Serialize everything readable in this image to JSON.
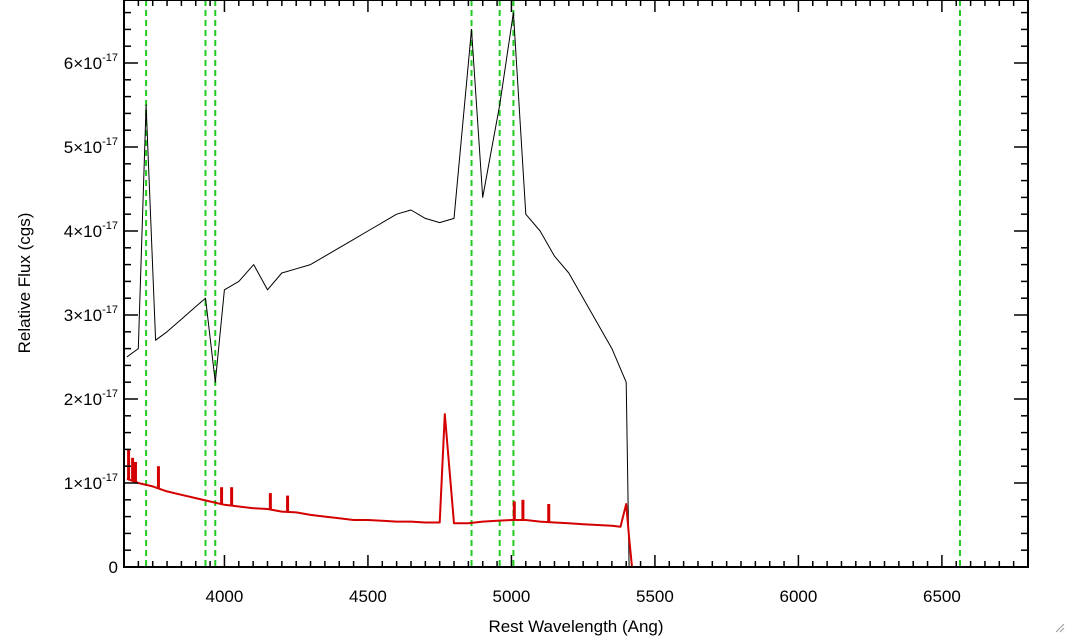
{
  "chart_data": {
    "type": "line",
    "title": "",
    "xlabel": "Rest Wavelength (Ang)",
    "ylabel": "Relative Flux (cgs)",
    "xlim": [
      3650,
      6800
    ],
    "ylim": [
      0,
      6.75e-17
    ],
    "x_ticks": [
      4000,
      4500,
      5000,
      5500,
      6000,
      6500
    ],
    "x_tick_labels": [
      "4000",
      "4500",
      "5000",
      "5500",
      "6000",
      "6500"
    ],
    "y_ticks": [
      0,
      1e-17,
      2e-17,
      3e-17,
      4e-17,
      5e-17,
      6e-17
    ],
    "y_tick_labels": [
      {
        "mantissa": "0",
        "exponent": ""
      },
      {
        "mantissa": "1×10",
        "exponent": "-17"
      },
      {
        "mantissa": "2×10",
        "exponent": "-17"
      },
      {
        "mantissa": "3×10",
        "exponent": "-17"
      },
      {
        "mantissa": "4×10",
        "exponent": "-17"
      },
      {
        "mantissa": "5×10",
        "exponent": "-17"
      },
      {
        "mantissa": "6×10",
        "exponent": "-17"
      }
    ],
    "grid": false,
    "series": [
      {
        "role": "spectrum",
        "color": "#000000",
        "x": [
          3660,
          3700,
          3727,
          3760,
          3800,
          3850,
          3900,
          3934,
          3968,
          4000,
          4050,
          4102,
          4150,
          4200,
          4250,
          4300,
          4350,
          4400,
          4450,
          4500,
          4550,
          4600,
          4650,
          4700,
          4750,
          4800,
          4861,
          4900,
          4959,
          5007,
          5050,
          5100,
          5150,
          5200,
          5250,
          5300,
          5350,
          5400,
          5410
        ],
        "y": [
          2.5e-17,
          2.6e-17,
          5.5e-17,
          2.7e-17,
          2.8e-17,
          2.95e-17,
          3.1e-17,
          3.2e-17,
          2.2e-17,
          3.3e-17,
          3.4e-17,
          3.6e-17,
          3.3e-17,
          3.5e-17,
          3.55e-17,
          3.6e-17,
          3.7e-17,
          3.8e-17,
          3.9e-17,
          4e-17,
          4.1e-17,
          4.2e-17,
          4.25e-17,
          4.15e-17,
          4.1e-17,
          4.15e-17,
          6.4e-17,
          4.4e-17,
          5.5e-17,
          6.6e-17,
          4.2e-17,
          4e-17,
          3.7e-17,
          3.5e-17,
          3.2e-17,
          2.9e-17,
          2.6e-17,
          2.2e-17,
          0
        ]
      },
      {
        "role": "model",
        "color": "#d40000",
        "x": [
          3660,
          3700,
          3750,
          3800,
          3850,
          3900,
          3950,
          4000,
          4050,
          4100,
          4150,
          4200,
          4250,
          4300,
          4350,
          4400,
          4450,
          4500,
          4550,
          4600,
          4650,
          4700,
          4750,
          4768,
          4800,
          4850,
          4900,
          4950,
          5000,
          5050,
          5100,
          5150,
          5200,
          5250,
          5300,
          5350,
          5380,
          5400,
          5410,
          5420,
          6800
        ],
        "y": [
          1.05e-17,
          1e-17,
          9.6e-18,
          9e-18,
          8.6e-18,
          8.2e-18,
          7.8e-18,
          7.4e-18,
          7.2e-18,
          7e-18,
          6.9e-18,
          6.6e-18,
          6.5e-18,
          6.2e-18,
          6e-18,
          5.8e-18,
          5.6e-18,
          5.6e-18,
          5.5e-18,
          5.4e-18,
          5.4e-18,
          5.3e-18,
          5.3e-18,
          1.82e-17,
          5.2e-18,
          5.2e-18,
          5.4e-18,
          5.5e-18,
          5.6e-18,
          5.6e-18,
          5.4e-18,
          5.3e-18,
          5.2e-18,
          5.1e-18,
          5e-18,
          4.9e-18,
          4.8e-18,
          7.5e-18,
          3.5e-18,
          0,
          0
        ]
      }
    ],
    "emission_lines": [
      {
        "x": 3666,
        "y": 1.4e-17
      },
      {
        "x": 3680,
        "y": 1.3e-17
      },
      {
        "x": 3690,
        "y": 1.25e-17
      },
      {
        "x": 3770,
        "y": 1.2e-17
      },
      {
        "x": 3990,
        "y": 9.5e-18
      },
      {
        "x": 4025,
        "y": 9.5e-18
      },
      {
        "x": 4160,
        "y": 8.8e-18
      },
      {
        "x": 4220,
        "y": 8.5e-18
      },
      {
        "x": 5010,
        "y": 7.8e-18
      },
      {
        "x": 5040,
        "y": 8e-18
      },
      {
        "x": 5130,
        "y": 7.5e-18
      }
    ],
    "vertical_markers": {
      "color": "#22cc22",
      "style": "dashed",
      "x": [
        3727,
        3934,
        3968,
        4861,
        4959,
        5007,
        6563
      ]
    }
  }
}
